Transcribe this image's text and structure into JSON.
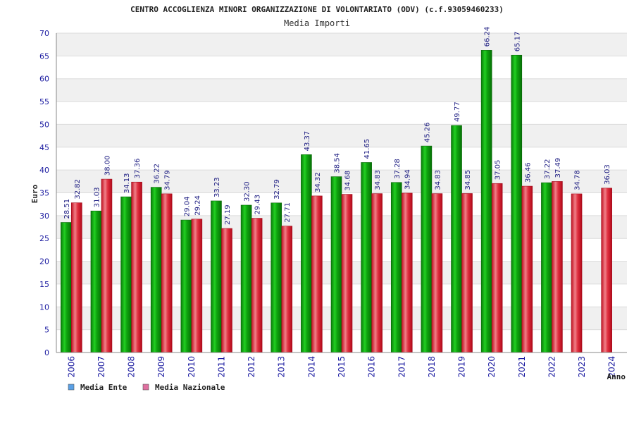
{
  "chart_data": {
    "type": "bar",
    "title": "CENTRO ACCOGLIENZA MINORI ORGANIZZAZIONE DI VOLONTARIATO (ODV) (c.f.93059460233)",
    "subtitle": "Media Importi",
    "xlabel": "Anno",
    "ylabel": "Euro",
    "ylim": [
      0,
      70
    ],
    "ytick_step": 5,
    "grid": true,
    "legend_position": "bottom-left",
    "categories": [
      "2006",
      "2007",
      "2008",
      "2009",
      "2010",
      "2011",
      "2012",
      "2013",
      "2014",
      "2015",
      "2016",
      "2017",
      "2018",
      "2019",
      "2020",
      "2021",
      "2022",
      "2023",
      "2024"
    ],
    "series": [
      {
        "name": "Media Ente",
        "color": "#10b010",
        "legend_color": "#5aa0e6",
        "values": [
          28.51,
          31.03,
          34.13,
          36.22,
          29.04,
          33.23,
          32.3,
          32.79,
          43.37,
          38.54,
          41.65,
          37.28,
          45.26,
          49.77,
          66.24,
          65.17,
          37.22,
          null,
          null
        ],
        "labels": [
          "28.51",
          "31.03",
          "34.13",
          "36.22",
          "29.04",
          "33.23",
          "32.30",
          "32.79",
          "43.37",
          "38.54",
          "41.65",
          "37.28",
          "45.26",
          "49.77",
          "66.24",
          "65.17",
          "37.22",
          "",
          ""
        ]
      },
      {
        "name": "Media Nazionale",
        "color": "#e02030",
        "legend_color": "#e070a0",
        "values": [
          32.82,
          38.0,
          37.36,
          34.79,
          29.24,
          27.19,
          29.43,
          27.71,
          34.32,
          34.68,
          34.83,
          34.94,
          34.83,
          34.85,
          37.05,
          36.46,
          37.49,
          34.78,
          36.03
        ],
        "labels": [
          "32.82",
          "38.00",
          "37.36",
          "34.79",
          "29.24",
          "27.19",
          "29.43",
          "27.71",
          "34.32",
          "34.68",
          "34.83",
          "34.94",
          "34.83",
          "34.85",
          "37.05",
          "36.46",
          "37.49",
          "34.78",
          "36.03"
        ]
      }
    ]
  }
}
